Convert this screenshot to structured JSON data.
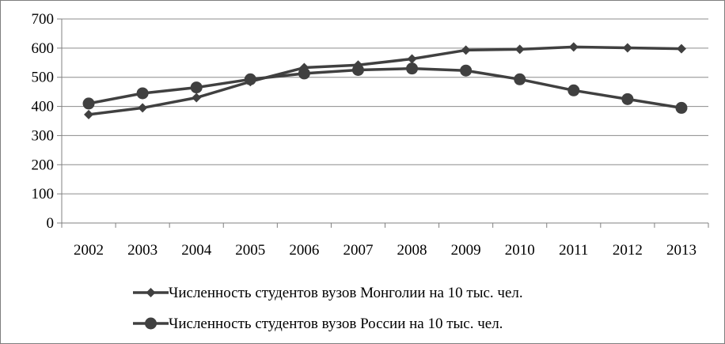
{
  "chart_data": {
    "type": "line",
    "categories": [
      "2002",
      "2003",
      "2004",
      "2005",
      "2006",
      "2007",
      "2008",
      "2009",
      "2010",
      "2011",
      "2012",
      "2013"
    ],
    "series": [
      {
        "name": "Численность студентов вузов Монголии на 10 тыс. чел.",
        "marker": "diamond",
        "values": [
          372,
          395,
          430,
          485,
          533,
          542,
          563,
          593,
          596,
          604,
          601,
          598
        ]
      },
      {
        "name": "Численность студентов вузов России на 10 тыс. чел.",
        "marker": "circle",
        "values": [
          410,
          445,
          465,
          493,
          513,
          525,
          530,
          523,
          493,
          455,
          425,
          395
        ]
      }
    ],
    "yticks": [
      "0",
      "100",
      "200",
      "300",
      "400",
      "500",
      "600",
      "700"
    ],
    "ylim": [
      0,
      700
    ],
    "grid": true,
    "legend_position": "bottom",
    "colors": {
      "series": "#404040",
      "grid": "#8c8c8c",
      "frame": "#7f7f7f"
    }
  }
}
